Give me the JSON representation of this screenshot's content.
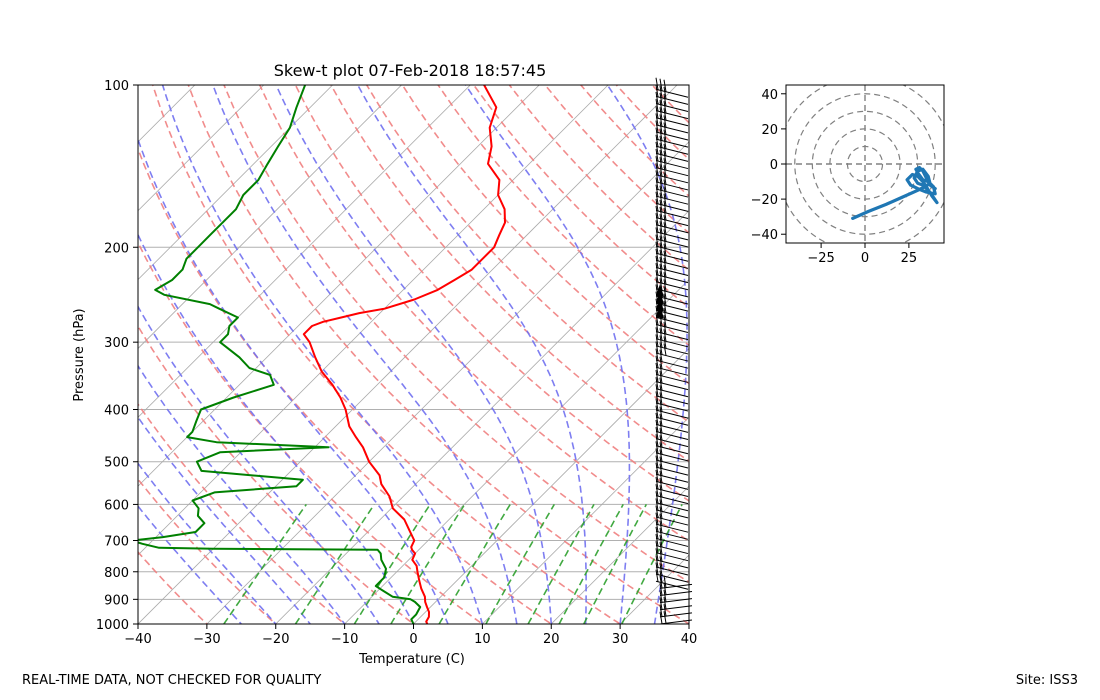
{
  "footer": {
    "left": "REAL-TIME DATA, NOT CHECKED FOR QUALITY",
    "right": "Site: ISS3"
  },
  "chart_data": [
    {
      "type": "line",
      "name": "skew-t",
      "title": "Skew-t plot 07-Feb-2018 18:57:45",
      "xlabel": "Temperature (C)",
      "ylabel": "Pressure (hPa)",
      "xlim": [
        -40,
        40
      ],
      "ylim": [
        1000,
        100
      ],
      "y_scale": "log",
      "x_ticks": [
        -40,
        -30,
        -20,
        -10,
        0,
        10,
        20,
        30,
        40
      ],
      "x_tick_labels": [
        "−40",
        "−30",
        "−20",
        "−10",
        "0",
        "10",
        "20",
        "30",
        "40"
      ],
      "y_ticks": [
        1000,
        900,
        800,
        700,
        600,
        500,
        400,
        300,
        200,
        100
      ],
      "y_tick_labels": [
        "1000",
        "900",
        "800",
        "700",
        "600",
        "500",
        "400",
        "300",
        "200",
        "100"
      ],
      "grid": true,
      "colors": {
        "temperature": "#ff0000",
        "dewpoint": "#008000",
        "dry_adiabats": "#f08080",
        "moist_adiabats": "#7070f0",
        "mixing_ratio": "#2ca02c",
        "isotherms": "#aaaaaa"
      },
      "series": [
        {
          "name": "temperature",
          "points": [
            [
              1000,
              2
            ],
            [
              990,
              1.5
            ],
            [
              970,
              1.2
            ],
            [
              950,
              0.5
            ],
            [
              930,
              -0.5
            ],
            [
              910,
              -1.5
            ],
            [
              890,
              -2.3
            ],
            [
              860,
              -4
            ],
            [
              830,
              -5.5
            ],
            [
              800,
              -7
            ],
            [
              780,
              -8
            ],
            [
              760,
              -9.5
            ],
            [
              740,
              -10
            ],
            [
              728,
              -11
            ],
            [
              720,
              -11.5
            ],
            [
              700,
              -12
            ],
            [
              670,
              -14.2
            ],
            [
              640,
              -16.5
            ],
            [
              610,
              -19.8
            ],
            [
              580,
              -22
            ],
            [
              550,
              -25
            ],
            [
              530,
              -26.5
            ],
            [
              500,
              -30
            ],
            [
              470,
              -33
            ],
            [
              450,
              -35.5
            ],
            [
              430,
              -38
            ],
            [
              400,
              -41
            ],
            [
              380,
              -43.5
            ],
            [
              360,
              -46.5
            ],
            [
              340,
              -50
            ],
            [
              320,
              -53
            ],
            [
              300,
              -56
            ],
            [
              290,
              -58
            ],
            [
              280,
              -58
            ],
            [
              275,
              -57
            ],
            [
              270,
              -55
            ],
            [
              265,
              -53
            ],
            [
              260,
              -50
            ],
            [
              250,
              -47
            ],
            [
              240,
              -45
            ],
            [
              230,
              -44
            ],
            [
              220,
              -43
            ],
            [
              210,
              -43
            ],
            [
              200,
              -43
            ],
            [
              190,
              -44
            ],
            [
              180,
              -45
            ],
            [
              170,
              -47
            ],
            [
              160,
              -50
            ],
            [
              150,
              -52
            ],
            [
              140,
              -56
            ],
            [
              130,
              -58
            ],
            [
              120,
              -61
            ],
            [
              110,
              -63
            ],
            [
              100,
              -68
            ]
          ]
        },
        {
          "name": "dewpoint",
          "points": [
            [
              1000,
              0
            ],
            [
              980,
              -1
            ],
            [
              960,
              -1
            ],
            [
              930,
              -1.5
            ],
            [
              910,
              -3
            ],
            [
              900,
              -4
            ],
            [
              890,
              -7
            ],
            [
              870,
              -9
            ],
            [
              850,
              -11
            ],
            [
              820,
              -11
            ],
            [
              790,
              -12
            ],
            [
              760,
              -14
            ],
            [
              740,
              -15
            ],
            [
              728,
              -16
            ],
            [
              725,
              -40
            ],
            [
              722,
              -48
            ],
            [
              710,
              -51
            ],
            [
              700,
              -53
            ],
            [
              690,
              -49
            ],
            [
              675,
              -45
            ],
            [
              650,
              -45
            ],
            [
              630,
              -47
            ],
            [
              610,
              -48
            ],
            [
              590,
              -50
            ],
            [
              570,
              -48
            ],
            [
              555,
              -37
            ],
            [
              540,
              -37
            ],
            [
              520,
              -53
            ],
            [
              500,
              -55
            ],
            [
              480,
              -53
            ],
            [
              470,
              -38
            ],
            [
              460,
              -55
            ],
            [
              450,
              -60
            ],
            [
              440,
              -60
            ],
            [
              420,
              -61
            ],
            [
              400,
              -62
            ],
            [
              380,
              -59
            ],
            [
              360,
              -55
            ],
            [
              345,
              -57
            ],
            [
              335,
              -61
            ],
            [
              320,
              -64
            ],
            [
              300,
              -69
            ],
            [
              290,
              -69
            ],
            [
              280,
              -70
            ],
            [
              270,
              -70
            ],
            [
              260,
              -74
            ],
            [
              255,
              -76
            ],
            [
              245,
              -84
            ],
            [
              240,
              -86
            ],
            [
              230,
              -85
            ],
            [
              220,
              -85
            ],
            [
              210,
              -86
            ],
            [
              200,
              -86
            ],
            [
              190,
              -86
            ],
            [
              180,
              -86
            ],
            [
              170,
              -86
            ],
            [
              160,
              -87
            ],
            [
              150,
              -87
            ],
            [
              140,
              -88
            ],
            [
              130,
              -89
            ],
            [
              120,
              -90
            ],
            [
              110,
              -92
            ],
            [
              100,
              -94
            ]
          ]
        }
      ]
    },
    {
      "type": "line",
      "name": "hodograph",
      "xlim": [
        -45,
        45
      ],
      "ylim": [
        -45,
        45
      ],
      "x_ticks": [
        -25,
        0,
        25
      ],
      "x_tick_labels": [
        "−25",
        "0",
        "25"
      ],
      "y_ticks": [
        40,
        20,
        0,
        -20,
        -40
      ],
      "y_tick_labels": [
        "40",
        "20",
        "0",
        "−20",
        "−40"
      ],
      "rings": [
        10,
        20,
        30,
        40,
        50
      ],
      "color": "#1f77b4",
      "points": [
        [
          -7,
          -31
        ],
        [
          2,
          -27
        ],
        [
          12,
          -23
        ],
        [
          21,
          -19
        ],
        [
          30,
          -15
        ],
        [
          34,
          -13
        ],
        [
          37,
          -11
        ],
        [
          36,
          -7
        ],
        [
          33,
          -3
        ],
        [
          30,
          -4
        ],
        [
          28,
          -8
        ],
        [
          30,
          -11
        ],
        [
          33,
          -12
        ],
        [
          36,
          -15
        ],
        [
          39,
          -19
        ],
        [
          41,
          -22
        ],
        [
          38,
          -18
        ],
        [
          35,
          -13
        ],
        [
          33,
          -10
        ],
        [
          30,
          -7
        ],
        [
          27,
          -6
        ],
        [
          24,
          -9
        ],
        [
          26,
          -12
        ],
        [
          30,
          -14
        ],
        [
          35,
          -16
        ],
        [
          40,
          -17
        ],
        [
          39,
          -13
        ],
        [
          36,
          -10
        ],
        [
          33,
          -9
        ],
        [
          30,
          -5
        ],
        [
          29,
          -3
        ],
        [
          31,
          -2
        ],
        [
          33,
          -4
        ],
        [
          35,
          -8
        ],
        [
          37,
          -12
        ],
        [
          40,
          -14
        ]
      ]
    }
  ]
}
